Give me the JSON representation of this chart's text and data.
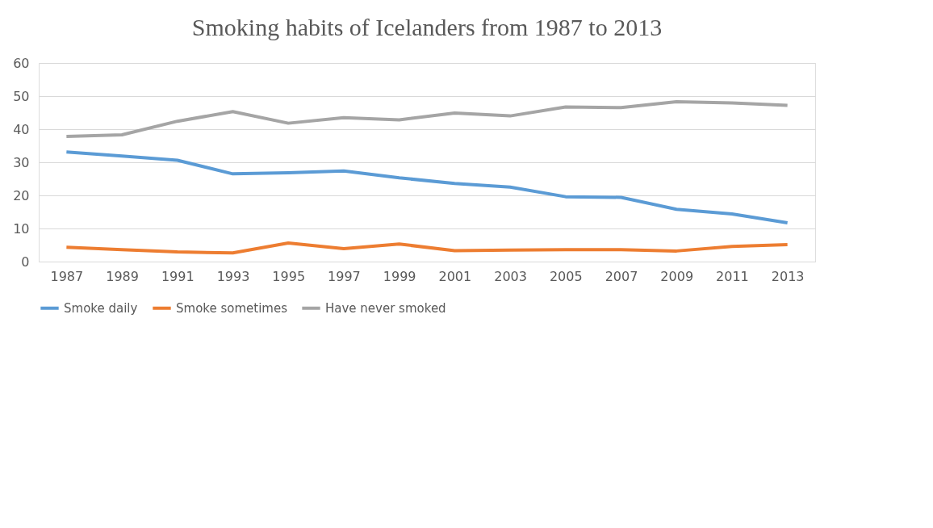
{
  "chart_data": {
    "type": "line",
    "title": "Smoking habits of Icelanders from 1987 to 2013",
    "categories": [
      "1987",
      "1989",
      "1991",
      "1993",
      "1995",
      "1997",
      "1999",
      "2001",
      "2003",
      "2005",
      "2007",
      "2009",
      "2011",
      "2013"
    ],
    "series": [
      {
        "name": "Smoke daily",
        "color": "#5b9bd5",
        "values": [
          33.1,
          31.9,
          30.6,
          26.5,
          26.8,
          27.4,
          25.3,
          23.6,
          22.5,
          19.6,
          19.4,
          15.8,
          14.4,
          11.7
        ]
      },
      {
        "name": "Smoke sometimes",
        "color": "#ed7d31",
        "values": [
          4.3,
          3.6,
          2.9,
          2.6,
          5.6,
          3.9,
          5.3,
          3.3,
          3.5,
          3.6,
          3.6,
          3.2,
          4.6,
          5.1
        ]
      },
      {
        "name": "Have never smoked",
        "color": "#a5a5a5",
        "values": [
          37.8,
          38.3,
          42.4,
          45.3,
          41.8,
          43.5,
          42.8,
          44.9,
          44.0,
          46.7,
          46.5,
          48.3,
          47.9,
          47.2
        ]
      }
    ],
    "ylim": [
      0,
      60
    ],
    "yticks": [
      0,
      10,
      20,
      30,
      40,
      50,
      60
    ],
    "grid": "y",
    "legend": "bottom",
    "marker": "none",
    "line_style": "solid"
  }
}
